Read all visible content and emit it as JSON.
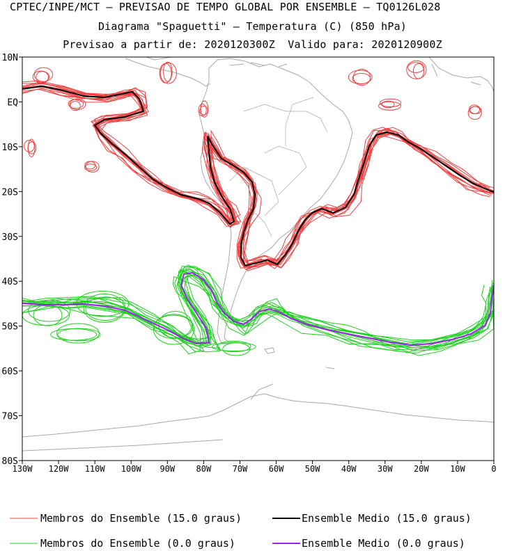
{
  "header": {
    "line1": "CPTEC/INPE/MCT — PREVISAO DE TEMPO GLOBAL POR ENSEMBLE — TQ0126L028",
    "line2": "Diagrama \"Spaguetti\" — Temperatura (C) (850 hPa)",
    "line3": "Previsao a partir de: 2020120300Z  Valido para: 2020120900Z"
  },
  "map": {
    "lat_labels": [
      "10N",
      "EQ",
      "10S",
      "20S",
      "30S",
      "40S",
      "50S",
      "60S",
      "70S",
      "80S"
    ],
    "lon_labels": [
      "130W",
      "120W",
      "110W",
      "100W",
      "90W",
      "80W",
      "70W",
      "60W",
      "50W",
      "40W",
      "30W",
      "20W",
      "10W",
      "0"
    ],
    "lon_range": [
      -130,
      0
    ],
    "lat_range": [
      -80,
      10
    ]
  },
  "legend": {
    "members_15": "Membros do Ensemble (15.0 graus)",
    "mean_15": "Ensemble Medio (15.0 graus)",
    "members_0": "Membros do Ensemble (0.0 graus)",
    "mean_0": "Ensemble Medio (0.0 graus)"
  },
  "colors": {
    "members_15": "#f04040",
    "mean_15": "#000000",
    "members_0": "#1fd01f",
    "mean_0": "#a020f0",
    "coast": "#a8a8a8"
  }
}
